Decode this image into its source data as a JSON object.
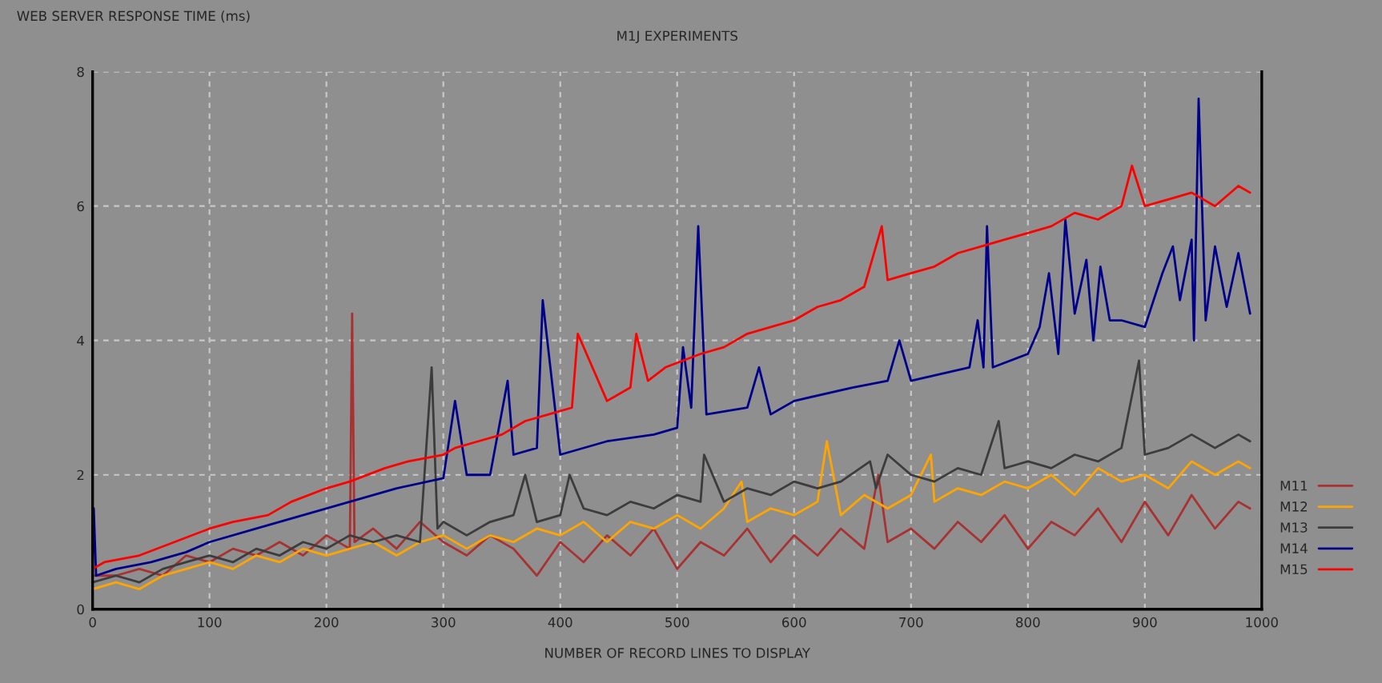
{
  "chart_data": {
    "type": "line",
    "title": "M1J EXPERIMENTS",
    "ylabel": "WEB SERVER RESPONSE TIME (ms)",
    "xlabel": "NUMBER OF RECORD LINES TO DISPLAY",
    "xlim": [
      0,
      1000
    ],
    "ylim": [
      0,
      8
    ],
    "xticks": [
      0,
      100,
      200,
      300,
      400,
      500,
      600,
      700,
      800,
      900,
      1000
    ],
    "yticks": [
      0,
      2,
      4,
      6,
      8
    ],
    "grid": true,
    "legend": "right",
    "line_style": "solid",
    "marker": "none",
    "series": [
      {
        "name": "M11",
        "color": "#a83232",
        "x": [
          0,
          20,
          40,
          60,
          80,
          100,
          120,
          140,
          160,
          180,
          200,
          220,
          222,
          224,
          240,
          260,
          280,
          300,
          320,
          340,
          360,
          380,
          400,
          420,
          440,
          460,
          480,
          500,
          520,
          540,
          560,
          580,
          600,
          620,
          640,
          660,
          672,
          680,
          700,
          720,
          740,
          760,
          780,
          800,
          820,
          840,
          860,
          880,
          900,
          920,
          940,
          960,
          980,
          990
        ],
        "values": [
          0.5,
          0.5,
          0.6,
          0.5,
          0.8,
          0.7,
          0.9,
          0.8,
          1.0,
          0.8,
          1.1,
          0.9,
          4.4,
          1.0,
          1.2,
          0.9,
          1.3,
          1.0,
          0.8,
          1.1,
          0.9,
          0.5,
          1.0,
          0.7,
          1.1,
          0.8,
          1.2,
          0.6,
          1.0,
          0.8,
          1.2,
          0.7,
          1.1,
          0.8,
          1.2,
          0.9,
          2.0,
          1.0,
          1.2,
          0.9,
          1.3,
          1.0,
          1.4,
          0.9,
          1.3,
          1.1,
          1.5,
          1.0,
          1.6,
          1.1,
          1.7,
          1.2,
          1.6,
          1.5
        ]
      },
      {
        "name": "M12",
        "color": "#ffa500",
        "x": [
          0,
          20,
          40,
          60,
          80,
          100,
          120,
          140,
          160,
          180,
          200,
          220,
          240,
          260,
          280,
          300,
          320,
          340,
          360,
          380,
          400,
          420,
          440,
          460,
          480,
          500,
          520,
          540,
          555,
          560,
          580,
          600,
          620,
          628,
          640,
          660,
          680,
          700,
          717,
          720,
          740,
          760,
          780,
          800,
          820,
          840,
          860,
          880,
          900,
          920,
          940,
          960,
          980,
          990
        ],
        "values": [
          0.3,
          0.4,
          0.3,
          0.5,
          0.6,
          0.7,
          0.6,
          0.8,
          0.7,
          0.9,
          0.8,
          0.9,
          1.0,
          0.8,
          1.0,
          1.1,
          0.9,
          1.1,
          1.0,
          1.2,
          1.1,
          1.3,
          1.0,
          1.3,
          1.2,
          1.4,
          1.2,
          1.5,
          1.9,
          1.3,
          1.5,
          1.4,
          1.6,
          2.5,
          1.4,
          1.7,
          1.5,
          1.7,
          2.3,
          1.6,
          1.8,
          1.7,
          1.9,
          1.8,
          2.0,
          1.7,
          2.1,
          1.9,
          2.0,
          1.8,
          2.2,
          2.0,
          2.2,
          2.1
        ]
      },
      {
        "name": "M13",
        "color": "#3c3c3c",
        "x": [
          0,
          20,
          40,
          60,
          80,
          100,
          120,
          140,
          160,
          180,
          200,
          220,
          240,
          260,
          280,
          290,
          295,
          300,
          320,
          340,
          360,
          370,
          380,
          400,
          408,
          420,
          440,
          460,
          480,
          500,
          520,
          523,
          540,
          560,
          580,
          600,
          620,
          640,
          665,
          670,
          680,
          700,
          720,
          740,
          760,
          775,
          780,
          800,
          820,
          840,
          860,
          880,
          895,
          900,
          920,
          940,
          960,
          980,
          990
        ],
        "values": [
          0.4,
          0.5,
          0.4,
          0.6,
          0.7,
          0.8,
          0.7,
          0.9,
          0.8,
          1.0,
          0.9,
          1.1,
          1.0,
          1.1,
          1.0,
          3.6,
          1.2,
          1.3,
          1.1,
          1.3,
          1.4,
          2.0,
          1.3,
          1.4,
          2.0,
          1.5,
          1.4,
          1.6,
          1.5,
          1.7,
          1.6,
          2.3,
          1.6,
          1.8,
          1.7,
          1.9,
          1.8,
          1.9,
          2.2,
          1.8,
          2.3,
          2.0,
          1.9,
          2.1,
          2.0,
          2.8,
          2.1,
          2.2,
          2.1,
          2.3,
          2.2,
          2.4,
          3.7,
          2.3,
          2.4,
          2.6,
          2.4,
          2.6,
          2.5
        ]
      },
      {
        "name": "M14",
        "color": "#00008b",
        "x": [
          0,
          1,
          3,
          20,
          50,
          80,
          100,
          140,
          180,
          220,
          260,
          300,
          310,
          320,
          340,
          355,
          360,
          380,
          385,
          400,
          440,
          480,
          500,
          505,
          512,
          518,
          525,
          560,
          570,
          580,
          600,
          650,
          680,
          690,
          700,
          750,
          757,
          762,
          765,
          770,
          800,
          810,
          818,
          826,
          832,
          840,
          850,
          856,
          862,
          870,
          880,
          900,
          915,
          924,
          930,
          940,
          942,
          946,
          952,
          960,
          970,
          980,
          990
        ],
        "values": [
          0.5,
          1.5,
          0.5,
          0.6,
          0.7,
          0.85,
          1.0,
          1.2,
          1.4,
          1.6,
          1.8,
          1.95,
          3.1,
          2.0,
          2.0,
          3.4,
          2.3,
          2.4,
          4.6,
          2.3,
          2.5,
          2.6,
          2.7,
          3.9,
          3.0,
          5.7,
          2.9,
          3.0,
          3.6,
          2.9,
          3.1,
          3.3,
          3.4,
          4.0,
          3.4,
          3.6,
          4.3,
          3.6,
          5.7,
          3.6,
          3.8,
          4.2,
          5.0,
          3.8,
          5.8,
          4.4,
          5.2,
          4.0,
          5.1,
          4.3,
          4.3,
          4.2,
          5.0,
          5.4,
          4.6,
          5.5,
          4.0,
          7.6,
          4.3,
          5.4,
          4.5,
          5.3,
          4.4
        ]
      },
      {
        "name": "M15",
        "color": "#ff0000",
        "x": [
          0,
          10,
          40,
          70,
          100,
          120,
          150,
          170,
          200,
          220,
          250,
          270,
          300,
          310,
          330,
          350,
          370,
          390,
          410,
          415,
          440,
          460,
          465,
          475,
          490,
          520,
          540,
          560,
          580,
          600,
          620,
          640,
          660,
          675,
          680,
          700,
          720,
          740,
          760,
          780,
          800,
          820,
          840,
          860,
          880,
          889,
          900,
          920,
          940,
          960,
          980,
          990
        ],
        "values": [
          0.6,
          0.7,
          0.8,
          1.0,
          1.2,
          1.3,
          1.4,
          1.6,
          1.8,
          1.9,
          2.1,
          2.2,
          2.3,
          2.4,
          2.5,
          2.6,
          2.8,
          2.9,
          3.0,
          4.1,
          3.1,
          3.3,
          4.1,
          3.4,
          3.6,
          3.8,
          3.9,
          4.1,
          4.2,
          4.3,
          4.5,
          4.6,
          4.8,
          5.7,
          4.9,
          5.0,
          5.1,
          5.3,
          5.4,
          5.5,
          5.6,
          5.7,
          5.9,
          5.8,
          6.0,
          6.6,
          6.0,
          6.1,
          6.2,
          6.0,
          6.3,
          6.2
        ]
      }
    ]
  }
}
